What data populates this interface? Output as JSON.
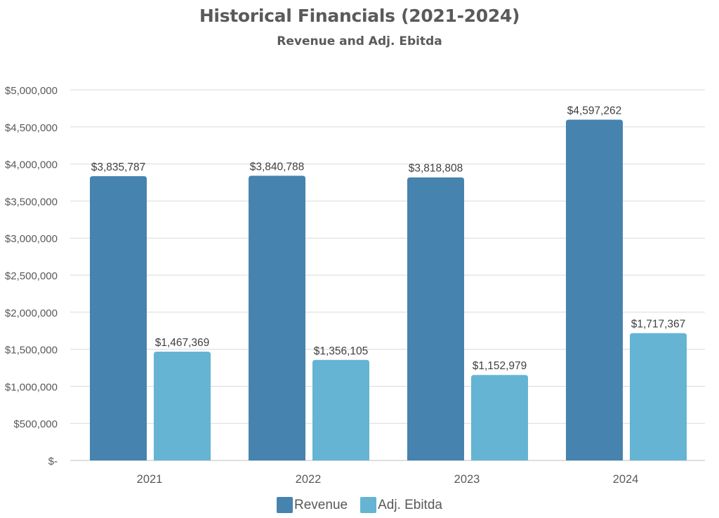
{
  "chart_data": {
    "type": "bar",
    "title": "Historical Financials (2021-2024)",
    "subtitle": "Revenue and Adj. Ebitda",
    "categories": [
      "2021",
      "2022",
      "2023",
      "2024"
    ],
    "series": [
      {
        "name": "Revenue",
        "color": "#4683AF",
        "values": [
          3835787,
          3840788,
          3818808,
          4597262
        ],
        "labels": [
          "$3,835,787",
          "$3,840,788",
          "$3,818,808",
          "$4,597,262"
        ]
      },
      {
        "name": "Adj. Ebitda",
        "color": "#65B4D3",
        "values": [
          1467369,
          1356105,
          1152979,
          1717367
        ],
        "labels": [
          "$1,467,369",
          "$1,356,105",
          "$1,152,979",
          "$1,717,367"
        ]
      }
    ],
    "ylim": [
      0,
      5000000
    ],
    "yticks": [
      0,
      500000,
      1000000,
      1500000,
      2000000,
      2500000,
      3000000,
      3500000,
      4000000,
      4500000,
      5000000
    ],
    "ytick_labels": [
      "$-",
      "$500,000",
      "$1,000,000",
      "$1,500,000",
      "$2,000,000",
      "$2,500,000",
      "$3,000,000",
      "$3,500,000",
      "$4,000,000",
      "$4,500,000",
      "$5,000,000"
    ],
    "grid": true,
    "legend": "bottom"
  }
}
